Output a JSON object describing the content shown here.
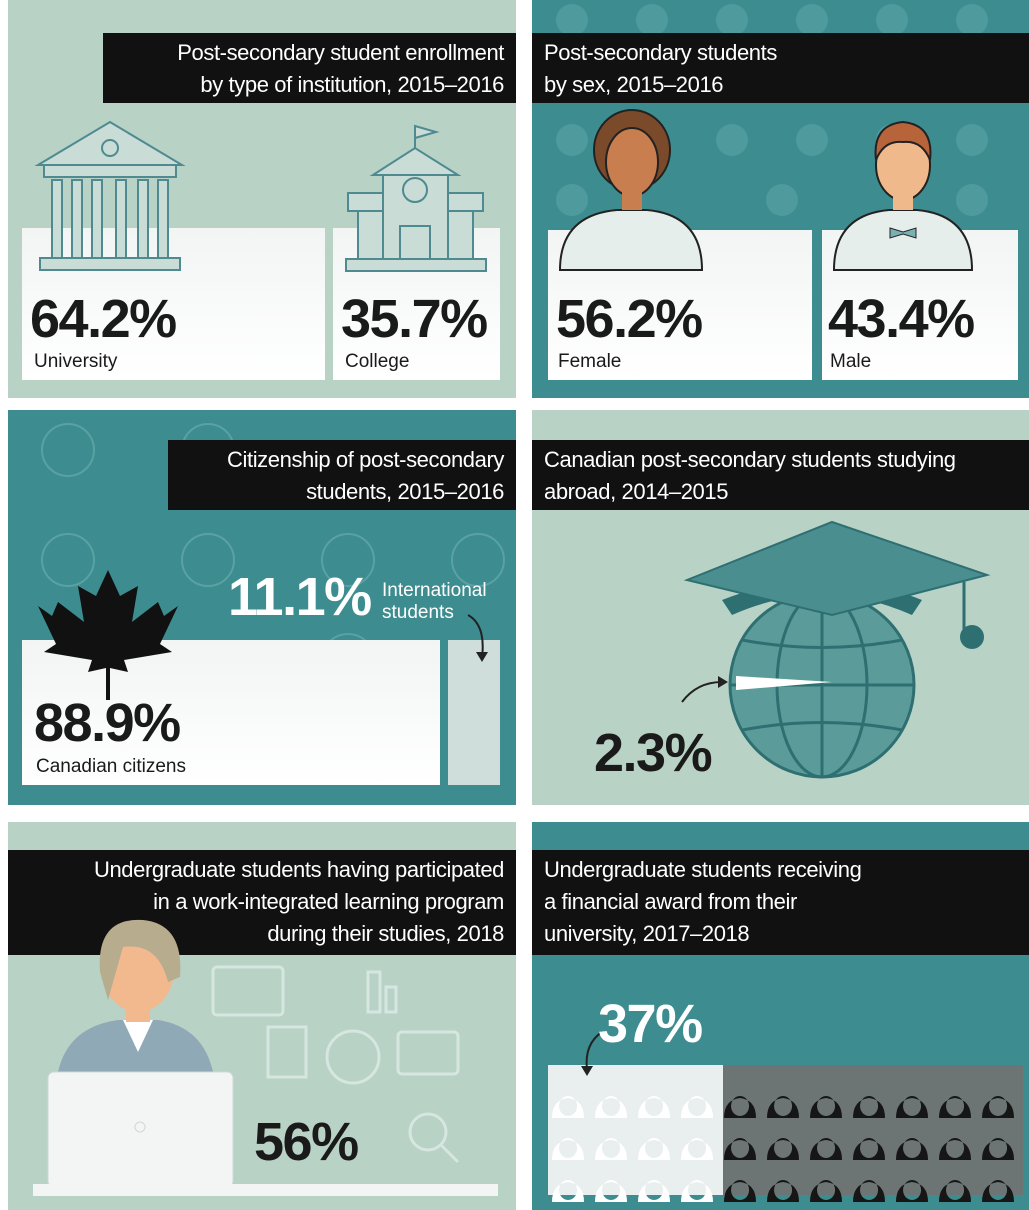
{
  "panels": [
    {
      "title": [
        "Post-secondary student enrollment",
        "by type of institution, 2015–2016"
      ],
      "stats": [
        {
          "value": "64.2%",
          "label": "University"
        },
        {
          "value": "35.7%",
          "label": "College"
        }
      ]
    },
    {
      "title": [
        "Post-secondary students",
        "by sex, 2015–2016"
      ],
      "stats": [
        {
          "value": "56.2%",
          "label": "Female"
        },
        {
          "value": "43.4%",
          "label": "Male"
        }
      ]
    },
    {
      "title": [
        "Citizenship of post-secondary",
        "students, 2015–2016"
      ],
      "stats": [
        {
          "value": "88.9%",
          "label": "Canadian citizens"
        },
        {
          "value": "11.1%",
          "label": "International students"
        }
      ]
    },
    {
      "title": [
        "Canadian post-secondary students studying",
        "abroad, 2014–2015"
      ],
      "stats": [
        {
          "value": "2.3%"
        }
      ]
    },
    {
      "title": [
        "Undergraduate students having participated",
        "in a work-integrated learning program",
        "during their studies, 2018"
      ],
      "stats": [
        {
          "value": "56%"
        }
      ]
    },
    {
      "title": [
        "Undergraduate students receiving",
        "a financial award from their",
        "university, 2017–2018"
      ],
      "stats": [
        {
          "value": "37%"
        }
      ]
    }
  ]
}
